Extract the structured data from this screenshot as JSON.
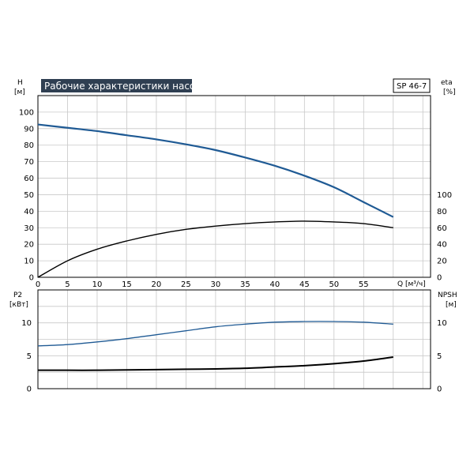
{
  "chart_data": [
    {
      "type": "line",
      "title": "Рабочие характеристики насоса",
      "model": "SP 46-7",
      "ylabel_left": "H",
      "ylabel_left_unit": "[м]",
      "ylabel_right": "eta",
      "ylabel_right_unit": "[%]",
      "xlabel": "Q [м³/ч]",
      "xlim": [
        0,
        60
      ],
      "x_ticks": [
        0,
        5,
        10,
        15,
        20,
        25,
        30,
        35,
        40,
        45,
        50,
        55
      ],
      "ylim_left": [
        0,
        110
      ],
      "y_ticks_left": [
        0,
        10,
        20,
        30,
        40,
        50,
        60,
        70,
        80,
        90,
        100
      ],
      "ylim_right": [
        0,
        220
      ],
      "y_ticks_right": [
        0,
        20,
        40,
        60,
        80,
        100
      ],
      "grid": true,
      "series": [
        {
          "axis": "left",
          "color": "#1f5a94",
          "x": [
            0,
            5,
            10,
            15,
            20,
            25,
            30,
            35,
            40,
            45,
            50,
            55,
            60
          ],
          "y": [
            92.5,
            90.5,
            88.5,
            86,
            83.5,
            80.5,
            77,
            72.5,
            67.5,
            61.5,
            54.5,
            45.5,
            36.5
          ]
        },
        {
          "axis": "right",
          "color": "#000000",
          "x": [
            0,
            5,
            10,
            15,
            20,
            25,
            30,
            35,
            40,
            45,
            50,
            55,
            60
          ],
          "y": [
            0,
            20,
            34,
            44,
            52,
            58,
            62,
            65,
            67,
            68,
            67,
            65,
            60
          ]
        }
      ]
    },
    {
      "type": "line",
      "ylabel_left": "P2",
      "ylabel_left_unit": "[кВт]",
      "ylabel_right": "NPSH",
      "ylabel_right_unit": "[м]",
      "xlim": [
        0,
        60
      ],
      "ylim_left": [
        0,
        15
      ],
      "y_ticks_left": [
        0,
        5,
        10
      ],
      "ylim_right": [
        0,
        15
      ],
      "y_ticks_right": [
        0,
        5,
        10
      ],
      "grid": true,
      "series": [
        {
          "axis": "left",
          "color": "#1f5a94",
          "x": [
            0,
            5,
            10,
            15,
            20,
            25,
            30,
            35,
            40,
            45,
            50,
            55,
            60
          ],
          "y": [
            6.5,
            6.7,
            7.1,
            7.6,
            8.2,
            8.8,
            9.4,
            9.8,
            10.1,
            10.2,
            10.2,
            10.1,
            9.8
          ]
        },
        {
          "axis": "right",
          "color": "#000000",
          "x": [
            0,
            5,
            10,
            15,
            20,
            25,
            30,
            35,
            40,
            45,
            50,
            55,
            60
          ],
          "y": [
            2.8,
            2.8,
            2.8,
            2.85,
            2.9,
            2.95,
            3.0,
            3.1,
            3.3,
            3.5,
            3.8,
            4.2,
            4.8
          ]
        }
      ]
    }
  ]
}
